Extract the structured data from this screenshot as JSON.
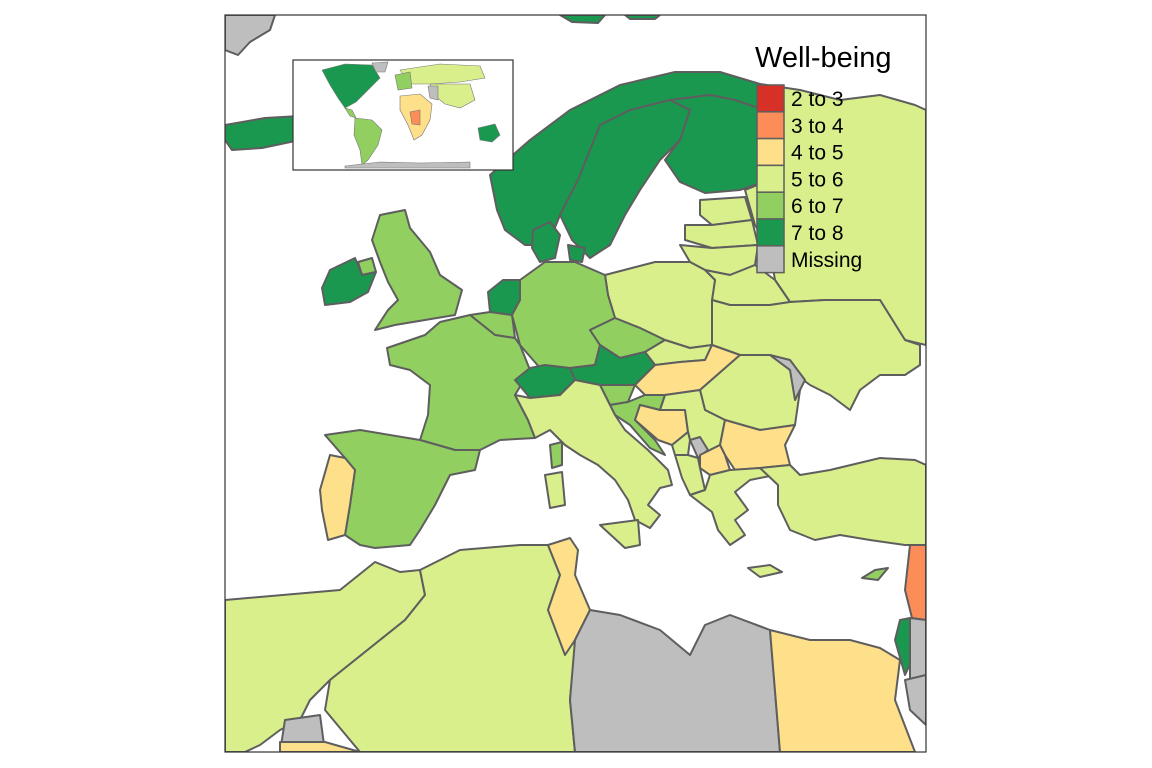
{
  "legend": {
    "title": "Well-being",
    "items": [
      {
        "label": "2 to 3",
        "color": "#d73027"
      },
      {
        "label": "3 to 4",
        "color": "#fc8d59"
      },
      {
        "label": "4 to 5",
        "color": "#fee08b"
      },
      {
        "label": "5 to 6",
        "color": "#d9ef8b"
      },
      {
        "label": "6 to 7",
        "color": "#91cf60"
      },
      {
        "label": "7 to 8",
        "color": "#1a9850"
      },
      {
        "label": "Missing",
        "color": "#bebebe"
      }
    ]
  },
  "colors": {
    "sea": "#ffffff",
    "border": "#5e5e5e",
    "frame": "#333333"
  }
}
